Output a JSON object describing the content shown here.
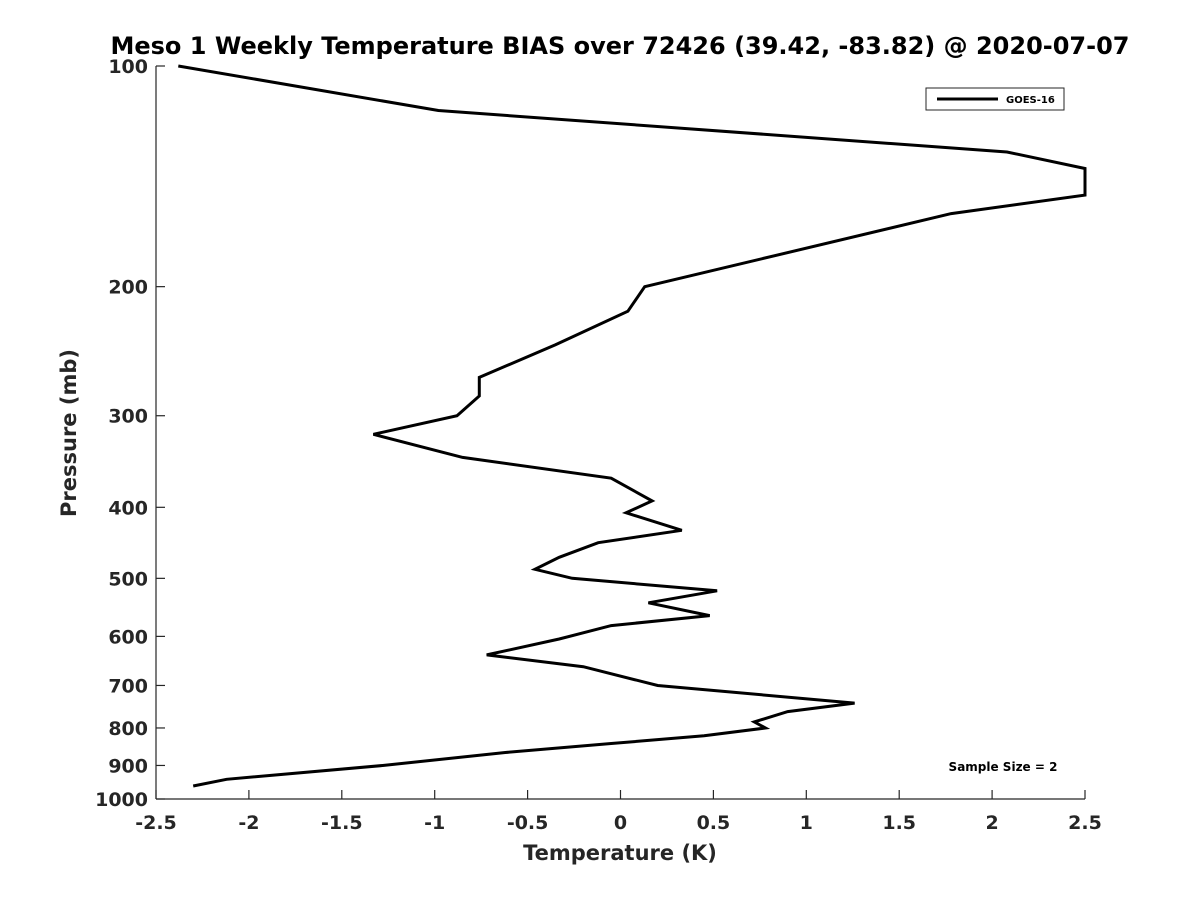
{
  "chart_data": {
    "type": "line",
    "title": "Meso 1 Weekly Temperature BIAS over 72426 (39.42, -83.82) @ 2020-07-07",
    "xlabel": "Temperature (K)",
    "ylabel": "Pressure (mb)",
    "xlim": [
      -2.5,
      2.5
    ],
    "ylim": [
      100,
      1000
    ],
    "y_scale": "log",
    "y_reversed": true,
    "x_ticks": [
      "-2.5",
      "-2",
      "-1.5",
      "-1",
      "-0.5",
      "0",
      "0.5",
      "1",
      "1.5",
      "2",
      "2.5"
    ],
    "x_tick_values": [
      -2.5,
      -2,
      -1.5,
      -1,
      -0.5,
      0,
      0.5,
      1,
      1.5,
      2,
      2.5
    ],
    "y_ticks": [
      "100",
      "200",
      "300",
      "400",
      "500",
      "600",
      "700",
      "800",
      "900",
      "1000"
    ],
    "y_tick_values": [
      100,
      200,
      300,
      400,
      500,
      600,
      700,
      800,
      900,
      1000
    ],
    "grid": false,
    "legend_position": "top-right",
    "annotation": "Sample Size = 2",
    "series": [
      {
        "name": "GOES-16",
        "color": "#000000",
        "points": [
          {
            "x": -2.38,
            "y": 100
          },
          {
            "x": -0.98,
            "y": 115
          },
          {
            "x": 2.08,
            "y": 131
          },
          {
            "x": 2.5,
            "y": 138
          },
          {
            "x": 2.5,
            "y": 150
          },
          {
            "x": 1.78,
            "y": 159
          },
          {
            "x": 0.13,
            "y": 200
          },
          {
            "x": 0.04,
            "y": 216
          },
          {
            "x": -0.35,
            "y": 240
          },
          {
            "x": -0.76,
            "y": 266
          },
          {
            "x": -0.76,
            "y": 282
          },
          {
            "x": -0.88,
            "y": 300
          },
          {
            "x": -1.33,
            "y": 318
          },
          {
            "x": -0.85,
            "y": 342
          },
          {
            "x": -0.05,
            "y": 365
          },
          {
            "x": 0.17,
            "y": 392
          },
          {
            "x": 0.03,
            "y": 407
          },
          {
            "x": 0.33,
            "y": 430
          },
          {
            "x": -0.12,
            "y": 447
          },
          {
            "x": -0.33,
            "y": 468
          },
          {
            "x": -0.46,
            "y": 486
          },
          {
            "x": -0.26,
            "y": 500
          },
          {
            "x": 0.52,
            "y": 520
          },
          {
            "x": 0.15,
            "y": 540
          },
          {
            "x": 0.48,
            "y": 562
          },
          {
            "x": -0.05,
            "y": 580
          },
          {
            "x": -0.33,
            "y": 605
          },
          {
            "x": -0.72,
            "y": 636
          },
          {
            "x": -0.2,
            "y": 660
          },
          {
            "x": 0.2,
            "y": 700
          },
          {
            "x": 1.26,
            "y": 740
          },
          {
            "x": 0.9,
            "y": 760
          },
          {
            "x": 0.72,
            "y": 785
          },
          {
            "x": 0.78,
            "y": 800
          },
          {
            "x": 0.45,
            "y": 820
          },
          {
            "x": -0.05,
            "y": 840
          },
          {
            "x": -0.62,
            "y": 864
          },
          {
            "x": -1.28,
            "y": 900
          },
          {
            "x": -2.12,
            "y": 940
          },
          {
            "x": -2.3,
            "y": 960
          }
        ]
      }
    ]
  }
}
